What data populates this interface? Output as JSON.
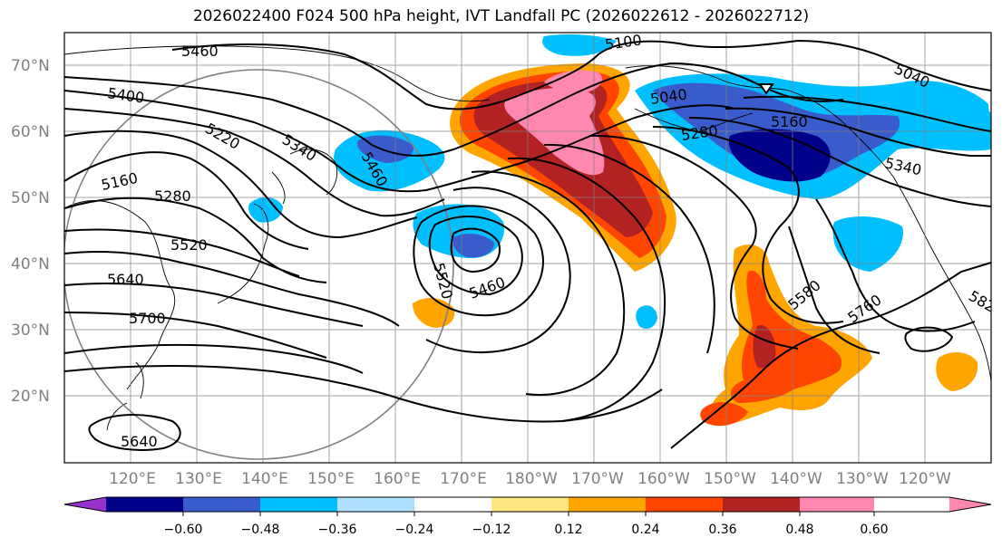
{
  "title": "2026022400 F024 500 hPa height, IVT Landfall PC (2026022612 - 2026022712)",
  "lat_labels": [
    "70°N",
    "60°N",
    "50°N",
    "40°N",
    "30°N",
    "20°N"
  ],
  "lon_labels": [
    "120°E",
    "130°E",
    "140°E",
    "150°E",
    "160°E",
    "170°E",
    "180°W",
    "170°W",
    "160°W",
    "150°W",
    "140°W",
    "130°W",
    "120°W"
  ],
  "contour_labels": [
    "5460",
    "5400",
    "5220",
    "5340",
    "5160",
    "5280",
    "5460",
    "5520",
    "5640",
    "5700",
    "5520",
    "5460",
    "5100",
    "5040",
    "5160",
    "5280",
    "5040",
    "5340",
    "5580",
    "5760",
    "582",
    "5640"
  ],
  "colorbar": {
    "ticks": [
      "−0.60",
      "−0.48",
      "−0.36",
      "−0.24",
      "−0.12",
      "0.12",
      "0.24",
      "0.36",
      "0.48",
      "0.60"
    ],
    "colors": [
      "#9932cc",
      "#00008b",
      "#3a5bcc",
      "#00bfff",
      "#b0e0ff",
      "#ffffff",
      "#ffe680",
      "#ffa500",
      "#ff4500",
      "#b22222",
      "#ff88b0"
    ]
  },
  "map_colors": {
    "pink": "#ff88b0",
    "darkred": "#b22222",
    "red": "#ff4500",
    "orange": "#ffa500",
    "lightblue": "#00bfff",
    "blue": "#3a5bcc",
    "navy": "#00008b"
  }
}
